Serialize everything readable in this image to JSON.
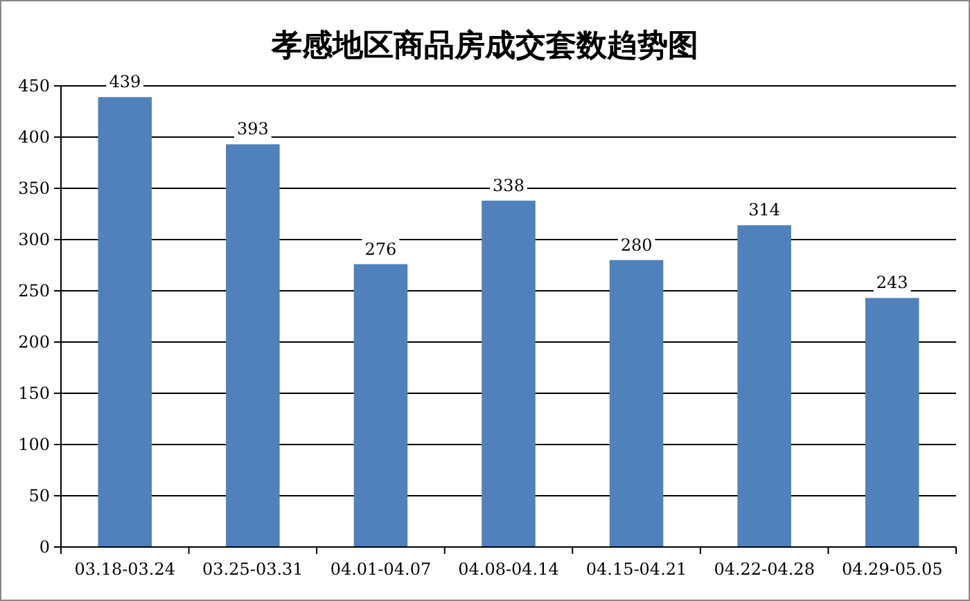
{
  "chart_data": {
    "type": "bar",
    "title": "孝感地区商品房成交套数趋势图",
    "categories": [
      "03.18-03.24",
      "03.25-03.31",
      "04.01-04.07",
      "04.08-04.14",
      "04.15-04.21",
      "04.22-04.28",
      "04.29-05.05"
    ],
    "values": [
      439,
      393,
      276,
      338,
      280,
      314,
      243
    ],
    "color": "#4f81bd",
    "ylim": [
      0,
      450
    ],
    "yticks": [
      0,
      50,
      100,
      150,
      200,
      250,
      300,
      350,
      400,
      450
    ],
    "grid": "y",
    "data_labels": true
  }
}
